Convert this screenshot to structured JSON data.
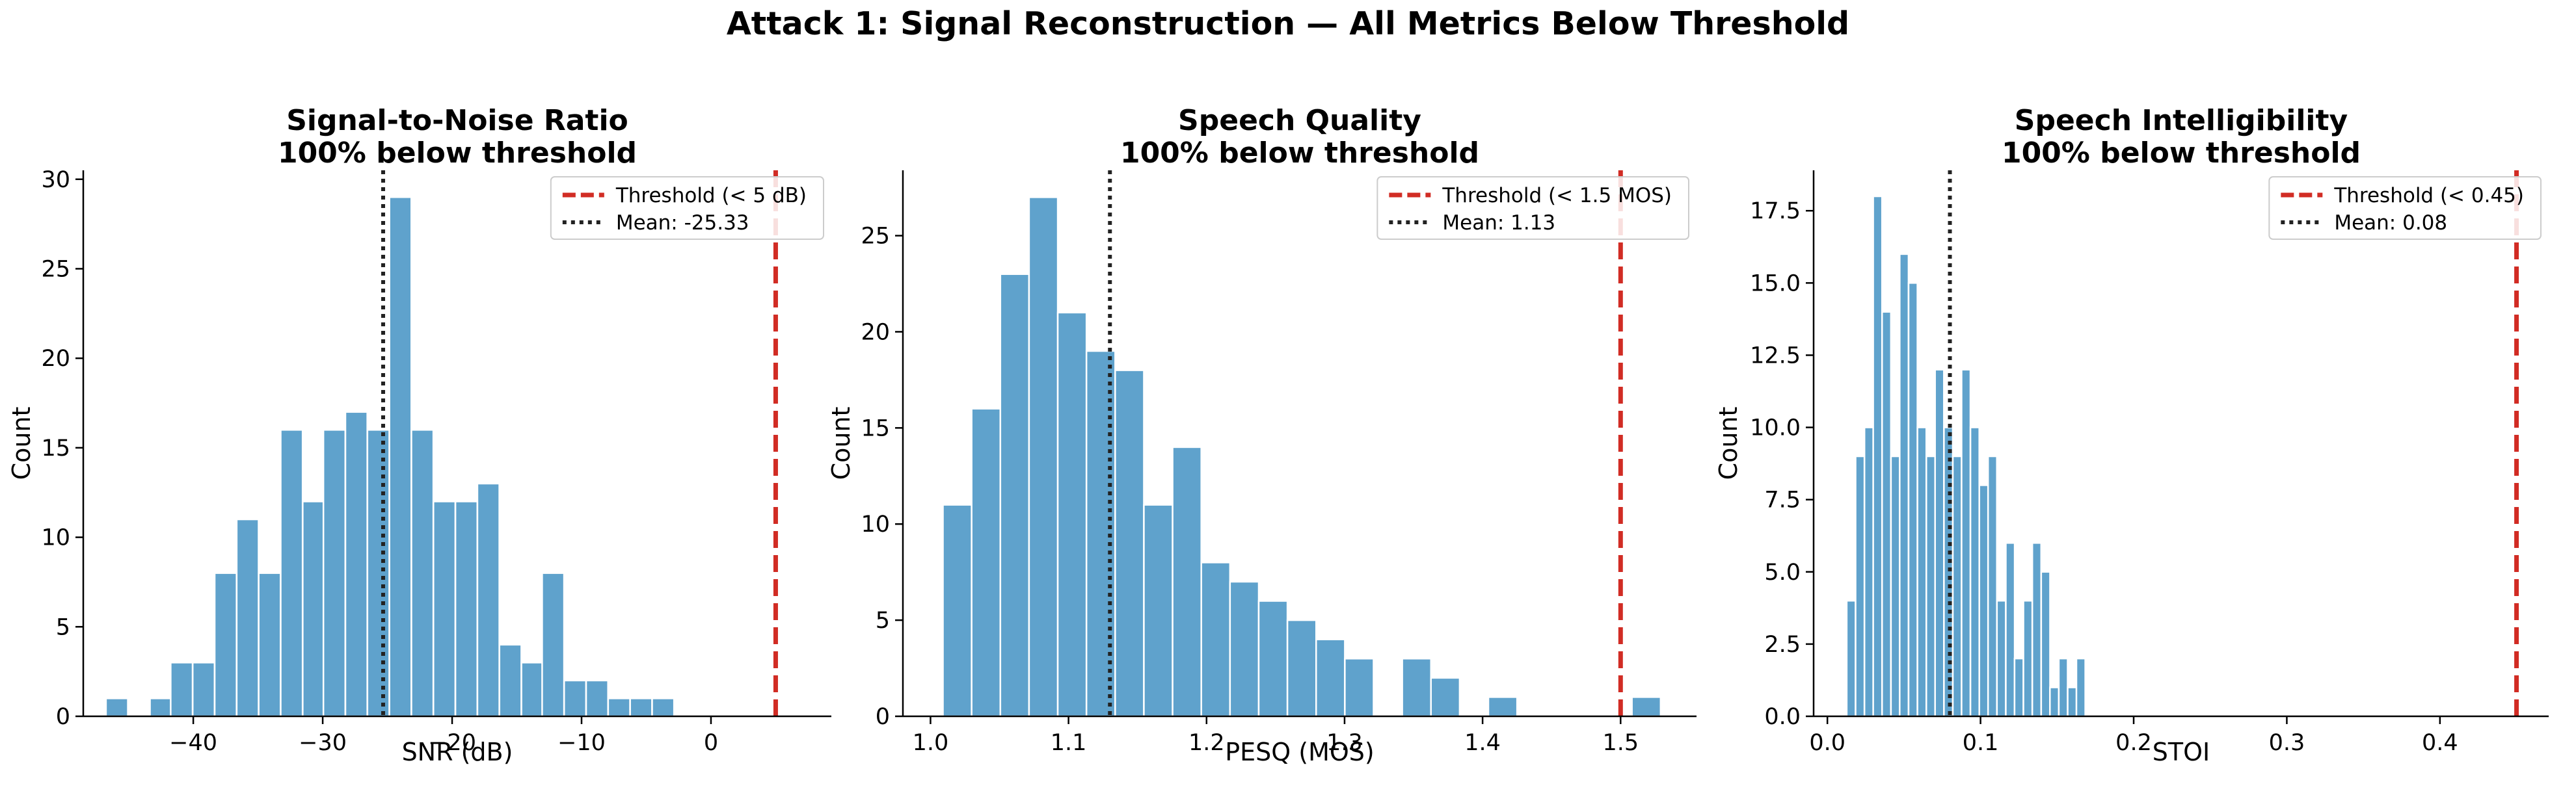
{
  "figure": {
    "title": "Attack 1: Signal Reconstruction — All Metrics Below Threshold"
  },
  "colors": {
    "bar": "#5fa2cc",
    "bar_edge": "#ffffff",
    "threshold": "#d12c24",
    "mean": "#222222",
    "axis": "#000000"
  },
  "chart_data": [
    {
      "type": "bar",
      "title": "Signal-to-Noise Ratio",
      "subtitle": "100% below threshold",
      "xlabel": "SNR (dB)",
      "ylabel": "Count",
      "xlim": [
        -48.5,
        9.3
      ],
      "ylim": [
        0,
        30.5
      ],
      "xticks": [
        -40,
        -30,
        -20,
        -10,
        0
      ],
      "xtick_labels": [
        "−40",
        "−30",
        "−20",
        "−10",
        "0"
      ],
      "yticks": [
        0,
        5,
        10,
        15,
        20,
        25,
        30
      ],
      "ytick_labels": [
        "0",
        "5",
        "10",
        "15",
        "20",
        "25",
        "30"
      ],
      "bin_width": 1.69,
      "bins": [
        {
          "x": -45.9,
          "count": 1
        },
        {
          "x": -42.5,
          "count": 1
        },
        {
          "x": -40.9,
          "count": 3
        },
        {
          "x": -39.2,
          "count": 3
        },
        {
          "x": -37.5,
          "count": 8
        },
        {
          "x": -35.8,
          "count": 11
        },
        {
          "x": -34.1,
          "count": 8
        },
        {
          "x": -32.4,
          "count": 16
        },
        {
          "x": -30.7,
          "count": 12
        },
        {
          "x": -29.1,
          "count": 16
        },
        {
          "x": -27.4,
          "count": 17
        },
        {
          "x": -25.7,
          "count": 16
        },
        {
          "x": -24.0,
          "count": 29
        },
        {
          "x": -22.3,
          "count": 16
        },
        {
          "x": -20.6,
          "count": 12
        },
        {
          "x": -18.9,
          "count": 12
        },
        {
          "x": -17.2,
          "count": 13
        },
        {
          "x": -15.5,
          "count": 4
        },
        {
          "x": -13.8,
          "count": 3
        },
        {
          "x": -12.2,
          "count": 8
        },
        {
          "x": -10.5,
          "count": 2
        },
        {
          "x": -8.8,
          "count": 2
        },
        {
          "x": -7.1,
          "count": 1
        },
        {
          "x": -5.4,
          "count": 1
        },
        {
          "x": -3.7,
          "count": 1
        }
      ],
      "threshold": {
        "x": 5,
        "label": "Threshold (< 5 dB)"
      },
      "mean": {
        "x": -25.33,
        "label": "Mean: -25.33"
      },
      "legend_position": "upper right"
    },
    {
      "type": "bar",
      "title": "Speech Quality",
      "subtitle": "100% below threshold",
      "xlabel": "PESQ (MOS)",
      "ylabel": "Count",
      "xlim": [
        0.98,
        1.555
      ],
      "ylim": [
        0,
        28.4
      ],
      "xticks": [
        1.0,
        1.1,
        1.2,
        1.3,
        1.4,
        1.5
      ],
      "xtick_labels": [
        "1.0",
        "1.1",
        "1.2",
        "1.3",
        "1.4",
        "1.5"
      ],
      "yticks": [
        0,
        5,
        10,
        15,
        20,
        25
      ],
      "ytick_labels": [
        "0",
        "5",
        "10",
        "15",
        "20",
        "25"
      ],
      "bin_width": 0.0208,
      "bins": [
        {
          "x": 1.0194,
          "count": 11
        },
        {
          "x": 1.0402,
          "count": 16
        },
        {
          "x": 1.061,
          "count": 23
        },
        {
          "x": 1.0818,
          "count": 27
        },
        {
          "x": 1.1026,
          "count": 21
        },
        {
          "x": 1.1234,
          "count": 19
        },
        {
          "x": 1.1442,
          "count": 18
        },
        {
          "x": 1.165,
          "count": 11
        },
        {
          "x": 1.1858,
          "count": 14
        },
        {
          "x": 1.2066,
          "count": 8
        },
        {
          "x": 1.2274,
          "count": 7
        },
        {
          "x": 1.2482,
          "count": 6
        },
        {
          "x": 1.269,
          "count": 5
        },
        {
          "x": 1.2898,
          "count": 4
        },
        {
          "x": 1.3106,
          "count": 3
        },
        {
          "x": 1.3522,
          "count": 3
        },
        {
          "x": 1.373,
          "count": 2
        },
        {
          "x": 1.4146,
          "count": 1
        },
        {
          "x": 1.5186,
          "count": 1
        }
      ],
      "threshold": {
        "x": 1.5,
        "label": "Threshold (< 1.5 MOS)"
      },
      "mean": {
        "x": 1.13,
        "label": "Mean: 1.13"
      },
      "legend_position": "upper right"
    },
    {
      "type": "bar",
      "title": "Speech Intelligibility",
      "subtitle": "100% below threshold",
      "xlabel": "STOI",
      "ylabel": "Count",
      "xlim": [
        -0.009,
        0.471
      ],
      "ylim": [
        0,
        18.9
      ],
      "xticks": [
        0.0,
        0.1,
        0.2,
        0.3,
        0.4
      ],
      "xtick_labels": [
        "0.0",
        "0.1",
        "0.2",
        "0.3",
        "0.4"
      ],
      "yticks": [
        0,
        2.5,
        5,
        7.5,
        10,
        12.5,
        15,
        17.5
      ],
      "ytick_labels": [
        "0.0",
        "2.5",
        "5.0",
        "7.5",
        "10.0",
        "12.5",
        "15.0",
        "17.5"
      ],
      "bin_width": 0.00577,
      "bins": [
        {
          "x": 0.0155,
          "count": 4
        },
        {
          "x": 0.0213,
          "count": 9
        },
        {
          "x": 0.0271,
          "count": 10
        },
        {
          "x": 0.0328,
          "count": 18
        },
        {
          "x": 0.0386,
          "count": 14
        },
        {
          "x": 0.0444,
          "count": 9
        },
        {
          "x": 0.0501,
          "count": 16
        },
        {
          "x": 0.0559,
          "count": 15
        },
        {
          "x": 0.0617,
          "count": 10
        },
        {
          "x": 0.0675,
          "count": 9
        },
        {
          "x": 0.0732,
          "count": 12
        },
        {
          "x": 0.079,
          "count": 10
        },
        {
          "x": 0.0848,
          "count": 9
        },
        {
          "x": 0.0905,
          "count": 12
        },
        {
          "x": 0.0963,
          "count": 10
        },
        {
          "x": 0.1021,
          "count": 8
        },
        {
          "x": 0.1078,
          "count": 9
        },
        {
          "x": 0.1136,
          "count": 4
        },
        {
          "x": 0.1194,
          "count": 6
        },
        {
          "x": 0.1251,
          "count": 2
        },
        {
          "x": 0.1309,
          "count": 4
        },
        {
          "x": 0.1367,
          "count": 6
        },
        {
          "x": 0.1425,
          "count": 5
        },
        {
          "x": 0.1482,
          "count": 1
        },
        {
          "x": 0.154,
          "count": 2
        },
        {
          "x": 0.1598,
          "count": 1
        },
        {
          "x": 0.1655,
          "count": 2
        }
      ],
      "threshold": {
        "x": 0.45,
        "label": "Threshold (< 0.45)"
      },
      "mean": {
        "x": 0.08,
        "label": "Mean: 0.08"
      },
      "legend_position": "upper right"
    }
  ]
}
